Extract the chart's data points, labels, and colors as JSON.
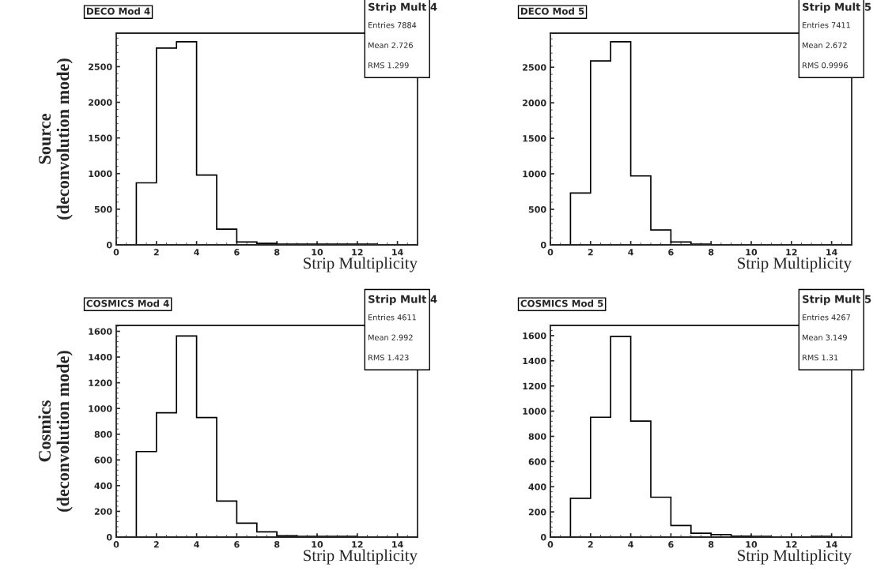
{
  "chart_data": [
    {
      "type": "histogram",
      "title": "DECO Mod 4",
      "xlabel": "Strip Multiplicity",
      "ylabel": "Source\n(deconvolution mode)",
      "bins": [
        0,
        1,
        2,
        3,
        4,
        5,
        6,
        7,
        8,
        9,
        10,
        11,
        12,
        13,
        14,
        15
      ],
      "values": [
        0,
        870,
        2760,
        2850,
        980,
        220,
        40,
        20,
        10,
        10,
        10,
        10,
        10,
        0,
        0
      ],
      "color": "#000000",
      "xlim": [
        0,
        15
      ],
      "ylim": [
        0,
        2970
      ],
      "xticks": [
        0,
        2,
        4,
        6,
        8,
        10,
        12,
        14
      ],
      "yticks": [
        0,
        500,
        1000,
        1500,
        2000,
        2500
      ],
      "grid": false,
      "legend": false,
      "annotations": [
        "Strip Mult 4",
        "Entries 7884",
        "Mean 2.726",
        "RMS 1.299"
      ]
    },
    {
      "type": "histogram",
      "title": "DECO Mod 5",
      "xlabel": "Strip Multiplicity",
      "bins": [
        0,
        1,
        2,
        3,
        4,
        5,
        6,
        7,
        8,
        9,
        10,
        11,
        12,
        13,
        14,
        15
      ],
      "values": [
        0,
        730,
        2590,
        2860,
        970,
        210,
        40,
        10,
        0,
        0,
        0,
        0,
        0,
        0,
        0
      ],
      "color": "#000000",
      "xlim": [
        0,
        15
      ],
      "ylim": [
        0,
        2980
      ],
      "xticks": [
        0,
        2,
        4,
        6,
        8,
        10,
        12,
        14
      ],
      "yticks": [
        0,
        500,
        1000,
        1500,
        2000,
        2500
      ],
      "grid": false,
      "legend": false,
      "annotations": [
        "Strip Mult 5",
        "Entries 7411",
        "Mean 2.672",
        "RMS 0.9996"
      ]
    },
    {
      "type": "histogram",
      "title": "COSMICS Mod 4",
      "xlabel": "Strip Multiplicity",
      "ylabel": "Cosmics\n(deconvolution mode)",
      "bins": [
        0,
        1,
        2,
        3,
        4,
        5,
        6,
        7,
        8,
        9,
        10,
        11,
        12,
        13,
        14,
        15
      ],
      "values": [
        0,
        665,
        967,
        1564,
        930,
        280,
        108,
        41,
        10,
        5,
        5,
        5,
        0,
        0,
        0
      ],
      "color": "#000000",
      "xlim": [
        0,
        15
      ],
      "ylim": [
        0,
        1646
      ],
      "xticks": [
        0,
        2,
        4,
        6,
        8,
        10,
        12,
        14
      ],
      "yticks": [
        0,
        200,
        400,
        600,
        800,
        1000,
        1200,
        1400,
        1600
      ],
      "grid": false,
      "legend": false,
      "annotations": [
        "Strip Mult 4",
        "Entries 4611",
        "Mean 2.992",
        "RMS 1.423"
      ]
    },
    {
      "type": "histogram",
      "title": "COSMICS Mod 5",
      "xlabel": "Strip Multiplicity",
      "bins": [
        0,
        1,
        2,
        3,
        4,
        5,
        6,
        7,
        8,
        9,
        10,
        11,
        12,
        13,
        14,
        15
      ],
      "values": [
        0,
        308,
        952,
        1594,
        921,
        317,
        92,
        31,
        20,
        8,
        5,
        0,
        0,
        5,
        0
      ],
      "color": "#000000",
      "xlim": [
        0,
        15
      ],
      "ylim": [
        0,
        1681
      ],
      "xticks": [
        0,
        2,
        4,
        6,
        8,
        10,
        12,
        14
      ],
      "yticks": [
        0,
        200,
        400,
        600,
        800,
        1000,
        1200,
        1400,
        1600
      ],
      "grid": false,
      "legend": false,
      "annotations": [
        "Strip Mult 5",
        "Entries 4267",
        "Mean 3.149",
        "RMS 1.31"
      ]
    }
  ]
}
